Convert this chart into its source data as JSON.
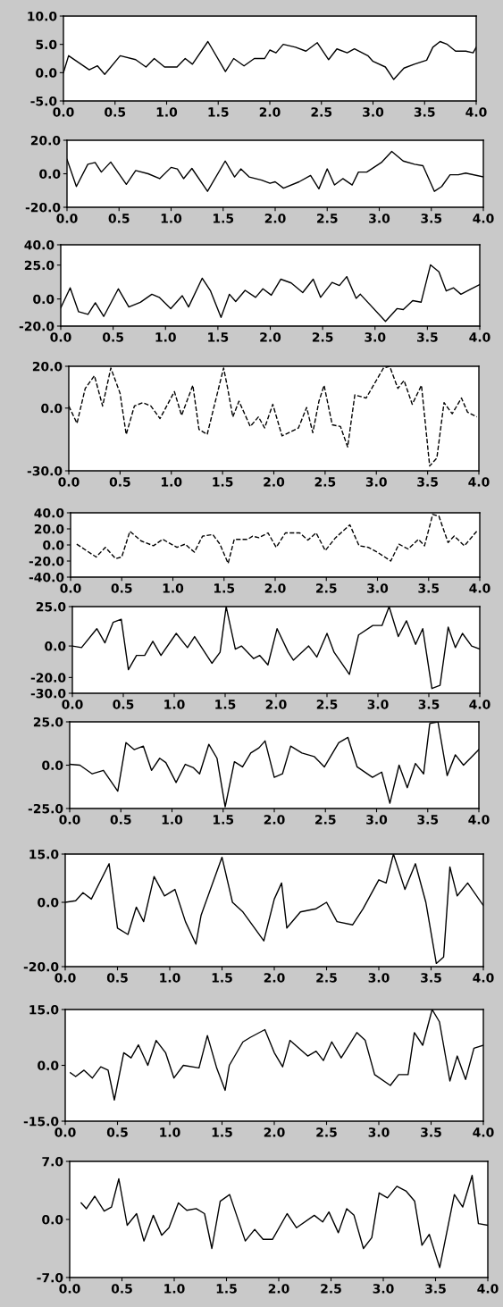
{
  "chart_data": [
    {
      "type": "line",
      "color": "#000000",
      "line_style": "solid",
      "xlim": [
        0,
        4
      ],
      "xticks": [
        {
          "value": 0,
          "label": "0.0"
        },
        {
          "value": 0.5,
          "label": "0.5"
        },
        {
          "value": 1,
          "label": "1.0"
        },
        {
          "value": 1.5,
          "label": "1.5"
        },
        {
          "value": 2,
          "label": "2.0"
        },
        {
          "value": 2.5,
          "label": "2.5"
        },
        {
          "value": 3,
          "label": "3.0"
        },
        {
          "value": 3.5,
          "label": "3.5"
        },
        {
          "value": 4,
          "label": "4.0"
        }
      ],
      "ylim": [
        -5,
        10
      ],
      "yticks": [
        {
          "value": -5,
          "label": "-5.0"
        },
        {
          "value": 0,
          "label": "0.0"
        },
        {
          "value": 5,
          "label": "5.0"
        },
        {
          "value": 10,
          "label": "10.0"
        }
      ],
      "x": [
        0,
        0.05,
        0.25,
        0.33,
        0.4,
        0.55,
        0.7,
        0.8,
        0.88,
        0.98,
        1.1,
        1.18,
        1.25,
        1.4,
        1.57,
        1.65,
        1.75,
        1.85,
        1.95,
        2.0,
        2.06,
        2.13,
        2.25,
        2.35,
        2.46,
        2.57,
        2.65,
        2.75,
        2.82,
        2.95,
        3.0,
        3.12,
        3.2,
        3.3,
        3.4,
        3.52,
        3.58,
        3.65,
        3.72,
        3.8,
        3.9,
        3.97,
        4.0
      ],
      "values": [
        0,
        3,
        0.5,
        1.2,
        -0.3,
        3,
        2.3,
        1,
        2.5,
        1,
        1,
        2.5,
        1.5,
        5.5,
        0.2,
        2.5,
        1.2,
        2.5,
        2.5,
        4,
        3.5,
        5,
        4.5,
        3.8,
        5.3,
        2.3,
        4.2,
        3.5,
        4.2,
        3,
        2,
        1,
        -1.2,
        0.8,
        1.5,
        2.2,
        4.5,
        5.5,
        5,
        3.8,
        3.8,
        3.5,
        4.5
      ]
    },
    {
      "type": "line",
      "color": "#000000",
      "line_style": "solid",
      "xlim": [
        0,
        4
      ],
      "xticks": [
        {
          "value": 0,
          "label": "0.0"
        },
        {
          "value": 0.5,
          "label": "0.5"
        },
        {
          "value": 1,
          "label": "1.0"
        },
        {
          "value": 1.5,
          "label": "1.5"
        },
        {
          "value": 2,
          "label": "2.0"
        },
        {
          "value": 2.5,
          "label": "2.5"
        },
        {
          "value": 3,
          "label": "3.0"
        },
        {
          "value": 3.5,
          "label": "3.5"
        },
        {
          "value": 4,
          "label": "4.0"
        }
      ],
      "ylim": [
        -20,
        20
      ],
      "yticks": [
        {
          "value": -20,
          "label": "-20.0"
        },
        {
          "value": 0,
          "label": "0.0"
        },
        {
          "value": 20,
          "label": "20.0"
        }
      ],
      "x": [
        0,
        0.09,
        0.2,
        0.27,
        0.33,
        0.42,
        0.57,
        0.66,
        0.78,
        0.89,
        1.0,
        1.06,
        1.12,
        1.2,
        1.35,
        1.52,
        1.61,
        1.67,
        1.75,
        1.87,
        1.95,
        2.0,
        2.08,
        2.23,
        2.34,
        2.42,
        2.5,
        2.57,
        2.65,
        2.74,
        2.8,
        2.88,
        3.02,
        3.12,
        3.23,
        3.34,
        3.42,
        3.53,
        3.6,
        3.68,
        3.76,
        3.83,
        4.0
      ],
      "values": [
        8.6,
        -7.6,
        5.7,
        6.7,
        1,
        7,
        -6.3,
        1.9,
        0,
        -2.9,
        3.8,
        2.9,
        -2.9,
        3.2,
        -10.5,
        7.6,
        -1.9,
        2.9,
        -1.9,
        -3.8,
        -5.7,
        -4.8,
        -8.6,
        -4.8,
        -1,
        -9,
        2.9,
        -6.7,
        -2.9,
        -6.7,
        1,
        1,
        6.7,
        13.3,
        7.6,
        5.7,
        4.8,
        -10.5,
        -7.6,
        -0.6,
        -0.6,
        0.4,
        -1.9
      ]
    },
    {
      "type": "line",
      "color": "#000000",
      "line_style": "solid",
      "xlim": [
        0,
        4
      ],
      "xticks": [
        {
          "value": 0,
          "label": "0.0"
        },
        {
          "value": 0.5,
          "label": "0.5"
        },
        {
          "value": 1,
          "label": "1.0"
        },
        {
          "value": 1.5,
          "label": "1.5"
        },
        {
          "value": 2,
          "label": "2.0"
        },
        {
          "value": 2.5,
          "label": "2.5"
        },
        {
          "value": 3,
          "label": "3.0"
        },
        {
          "value": 3.5,
          "label": "3.5"
        },
        {
          "value": 4,
          "label": "4.0"
        }
      ],
      "ylim": [
        -20,
        40
      ],
      "yticks": [
        {
          "value": -20,
          "label": "-20.0"
        },
        {
          "value": 0,
          "label": "0.0"
        },
        {
          "value": 25,
          "label": "25.0"
        },
        {
          "value": 40,
          "label": "40.0"
        }
      ],
      "x": [
        0,
        0.09,
        0.17,
        0.26,
        0.33,
        0.41,
        0.55,
        0.65,
        0.76,
        0.87,
        0.94,
        1.05,
        1.16,
        1.22,
        1.35,
        1.43,
        1.53,
        1.61,
        1.67,
        1.76,
        1.86,
        1.93,
        2.01,
        2.1,
        2.2,
        2.31,
        2.41,
        2.48,
        2.59,
        2.66,
        2.73,
        2.82,
        2.86,
        3.1,
        3.21,
        3.27,
        3.36,
        3.44,
        3.53,
        3.61,
        3.68,
        3.75,
        3.82,
        3.91,
        4.0
      ],
      "values": [
        -6.6,
        8.2,
        -9.4,
        -11.3,
        -2.8,
        -12.9,
        7.5,
        -5.9,
        -2.4,
        3.5,
        1.2,
        -7.1,
        2.4,
        -5.9,
        15.3,
        5.9,
        -13.6,
        3.5,
        -1.9,
        6.4,
        1.2,
        7.5,
        2.8,
        14.6,
        11.8,
        4.7,
        14.6,
        1.2,
        12.2,
        9.9,
        16.5,
        0.5,
        3.5,
        -16.5,
        -7.1,
        -7.8,
        -1.2,
        -2.4,
        25.2,
        20,
        5.9,
        8.2,
        3.5,
        7.1,
        10.6
      ]
    },
    {
      "type": "line",
      "color": "#000000",
      "line_style": "dashed",
      "xlim": [
        0,
        4
      ],
      "xticks": [
        {
          "value": 0,
          "label": "0.0"
        },
        {
          "value": 0.5,
          "label": "0.5"
        },
        {
          "value": 1,
          "label": "1.0"
        },
        {
          "value": 1.5,
          "label": "1.5"
        },
        {
          "value": 2,
          "label": "2.0"
        },
        {
          "value": 2.5,
          "label": "2.5"
        },
        {
          "value": 3,
          "label": "3.0"
        },
        {
          "value": 3.5,
          "label": "3.5"
        },
        {
          "value": 4,
          "label": "4.0"
        }
      ],
      "ylim": [
        -30,
        20
      ],
      "yticks": [
        {
          "value": -30,
          "label": "-30.0"
        },
        {
          "value": 0,
          "label": "0.0"
        },
        {
          "value": 20,
          "label": "20.0"
        }
      ],
      "x": [
        0,
        0.08,
        0.16,
        0.25,
        0.33,
        0.41,
        0.5,
        0.56,
        0.64,
        0.72,
        0.8,
        0.89,
        1.03,
        1.1,
        1.21,
        1.27,
        1.35,
        1.51,
        1.55,
        1.6,
        1.66,
        1.77,
        1.85,
        1.91,
        1.99,
        2.08,
        2.24,
        2.32,
        2.38,
        2.44,
        2.49,
        2.57,
        2.65,
        2.72,
        2.79,
        2.9,
        3.07,
        3.13,
        3.21,
        3.27,
        3.35,
        3.44,
        3.52,
        3.59,
        3.66,
        3.74,
        3.83,
        3.89,
        3.98
      ],
      "values": [
        1,
        -7.3,
        9.4,
        15.5,
        1,
        19.2,
        7.1,
        -12.6,
        1,
        2.6,
        1,
        -5,
        7.9,
        -3.5,
        10.9,
        -10.2,
        -12.6,
        19.2,
        9.4,
        -4.2,
        3.3,
        -8.8,
        -4.2,
        -9.5,
        1.8,
        -13.3,
        -9.5,
        0.3,
        -11.8,
        3.3,
        10.9,
        -8,
        -8.8,
        -18.6,
        6.3,
        4.8,
        19.2,
        20,
        9.4,
        13.2,
        1.8,
        10.9,
        -27.7,
        -23.9,
        2.6,
        -2.7,
        4.8,
        -2,
        -4.2
      ]
    },
    {
      "type": "line",
      "color": "#000000",
      "line_style": "dashed",
      "xlim": [
        0,
        4
      ],
      "xticks": [
        {
          "value": 0,
          "label": "0.0"
        },
        {
          "value": 0.5,
          "label": "0.5"
        },
        {
          "value": 1,
          "label": "1.0"
        },
        {
          "value": 1.5,
          "label": "1.5"
        },
        {
          "value": 2,
          "label": "2.0"
        },
        {
          "value": 2.5,
          "label": "2.5"
        },
        {
          "value": 3,
          "label": "3.0"
        },
        {
          "value": 3.5,
          "label": "3.5"
        },
        {
          "value": 4,
          "label": "4.0"
        }
      ],
      "ylim": [
        -40,
        40
      ],
      "yticks": [
        {
          "value": -40,
          "label": "-40.0"
        },
        {
          "value": -20,
          "label": "-20.0"
        },
        {
          "value": 0,
          "label": "0.0"
        },
        {
          "value": 20,
          "label": "20.0"
        },
        {
          "value": 40,
          "label": "40.0"
        }
      ],
      "x": [
        0.06,
        0.25,
        0.34,
        0.44,
        0.5,
        0.58,
        0.69,
        0.81,
        0.9,
        1.04,
        1.12,
        1.21,
        1.29,
        1.39,
        1.46,
        1.54,
        1.6,
        1.73,
        1.78,
        1.84,
        1.93,
        2.01,
        2.1,
        2.24,
        2.32,
        2.4,
        2.49,
        2.59,
        2.73,
        2.82,
        2.91,
        3.0,
        3.13,
        3.21,
        3.3,
        3.4,
        3.46,
        3.54,
        3.6,
        3.69,
        3.75,
        3.85,
        3.97
      ],
      "values": [
        1,
        -15,
        -3,
        -17,
        -15,
        17,
        5,
        -1,
        7,
        -3,
        1,
        -9,
        11,
        13,
        1,
        -23,
        7,
        7,
        11,
        9,
        15,
        -3,
        15,
        15,
        6,
        15,
        -7,
        9,
        25,
        -1,
        -3,
        -9,
        -20,
        1,
        -5,
        7,
        -1,
        38,
        36,
        3,
        11,
        -1,
        17
      ]
    },
    {
      "type": "line",
      "color": "#000000",
      "line_style": "solid",
      "xlim": [
        0,
        4
      ],
      "xticks": [
        {
          "value": 0,
          "label": "0.0"
        },
        {
          "value": 0.5,
          "label": "0.5"
        },
        {
          "value": 1,
          "label": "1.0"
        },
        {
          "value": 1.5,
          "label": "1.5"
        },
        {
          "value": 2,
          "label": "2.0"
        },
        {
          "value": 2.5,
          "label": "2.5"
        },
        {
          "value": 3,
          "label": "3.0"
        },
        {
          "value": 3.5,
          "label": "3.5"
        },
        {
          "value": 4,
          "label": "4.0"
        }
      ],
      "ylim": [
        -30,
        25
      ],
      "yticks": [
        {
          "value": -30,
          "label": "-30.0"
        },
        {
          "value": -20,
          "label": "-20.0"
        },
        {
          "value": 0,
          "label": "0.0"
        },
        {
          "value": 25,
          "label": "25.0"
        }
      ],
      "x": [
        0,
        0.09,
        0.24,
        0.32,
        0.4,
        0.48,
        0.55,
        0.63,
        0.71,
        0.79,
        0.87,
        1.02,
        1.13,
        1.2,
        1.37,
        1.45,
        1.51,
        1.6,
        1.66,
        1.78,
        1.84,
        1.92,
        2.01,
        2.12,
        2.17,
        2.32,
        2.4,
        2.5,
        2.57,
        2.72,
        2.81,
        2.95,
        3.04,
        3.11,
        3.2,
        3.28,
        3.37,
        3.44,
        3.53,
        3.61,
        3.69,
        3.76,
        3.83,
        3.92,
        4.0
      ],
      "values": [
        0,
        -1,
        11,
        2,
        15,
        17,
        -15,
        -6,
        -6,
        3,
        -6,
        8,
        -1,
        6,
        -11,
        -4,
        25,
        -2,
        0,
        -8,
        -6,
        -12,
        11,
        -4,
        -9,
        0,
        -7,
        8,
        -4,
        -18,
        7,
        13,
        13,
        25,
        6,
        16,
        1,
        11,
        -27,
        -25,
        12,
        -1,
        8,
        0,
        -2
      ]
    },
    {
      "type": "line",
      "color": "#000000",
      "line_style": "solid",
      "xlim": [
        0,
        4
      ],
      "xticks": [
        {
          "value": 0,
          "label": "0.0"
        },
        {
          "value": 0.5,
          "label": "0.5"
        },
        {
          "value": 1,
          "label": "1.0"
        },
        {
          "value": 1.5,
          "label": "1.5"
        },
        {
          "value": 2,
          "label": "2.0"
        },
        {
          "value": 2.5,
          "label": "2.5"
        },
        {
          "value": 3,
          "label": "3.0"
        },
        {
          "value": 3.5,
          "label": "3.5"
        },
        {
          "value": 4,
          "label": "4.0"
        }
      ],
      "ylim": [
        -25,
        25
      ],
      "yticks": [
        {
          "value": -25,
          "label": "-25.0"
        },
        {
          "value": 0,
          "label": "0.0"
        },
        {
          "value": 25,
          "label": "25.0"
        }
      ],
      "x": [
        0,
        0.1,
        0.22,
        0.33,
        0.47,
        0.55,
        0.63,
        0.72,
        0.8,
        0.88,
        0.94,
        1.04,
        1.13,
        1.21,
        1.27,
        1.36,
        1.44,
        1.52,
        1.61,
        1.69,
        1.77,
        1.85,
        1.91,
        2.0,
        2.08,
        2.16,
        2.27,
        2.39,
        2.49,
        2.63,
        2.72,
        2.81,
        2.96,
        3.05,
        3.13,
        3.22,
        3.3,
        3.38,
        3.46,
        3.52,
        3.6,
        3.69,
        3.77,
        3.85,
        4.0
      ],
      "values": [
        0.5,
        0,
        -5,
        -3,
        -15,
        13,
        9,
        11,
        -3,
        4,
        1.5,
        -10,
        0.5,
        -1.5,
        -5,
        12,
        4,
        -24,
        2,
        -1,
        7,
        10,
        14,
        -7,
        -5,
        11,
        7,
        5,
        -1,
        13,
        16,
        -1,
        -7,
        -4,
        -22,
        0,
        -13,
        1,
        -5,
        24,
        25,
        -6,
        6,
        0,
        9
      ]
    },
    {
      "type": "line",
      "color": "#000000",
      "line_style": "solid",
      "xlim": [
        0,
        4
      ],
      "xticks": [
        {
          "value": 0,
          "label": "0.0"
        },
        {
          "value": 0.5,
          "label": "0.5"
        },
        {
          "value": 1,
          "label": "1.0"
        },
        {
          "value": 1.5,
          "label": "1.5"
        },
        {
          "value": 2,
          "label": "2.0"
        },
        {
          "value": 2.5,
          "label": "2.5"
        },
        {
          "value": 3,
          "label": "3.0"
        },
        {
          "value": 3.5,
          "label": "3.5"
        },
        {
          "value": 4,
          "label": "4.0"
        }
      ],
      "ylim": [
        -20,
        15
      ],
      "yticks": [
        {
          "value": -20,
          "label": "-20.0"
        },
        {
          "value": 0,
          "label": "0.0"
        },
        {
          "value": 15,
          "label": "15.0"
        }
      ],
      "x": [
        0,
        0.1,
        0.17,
        0.25,
        0.42,
        0.5,
        0.6,
        0.68,
        0.75,
        0.85,
        0.95,
        1.05,
        1.15,
        1.25,
        1.3,
        1.5,
        1.6,
        1.7,
        1.9,
        2.0,
        2.07,
        2.12,
        2.25,
        2.4,
        2.5,
        2.6,
        2.75,
        2.85,
        3.0,
        3.07,
        3.14,
        3.25,
        3.35,
        3.45,
        3.55,
        3.62,
        3.68,
        3.75,
        3.85,
        4.0
      ],
      "values": [
        0,
        0.5,
        3,
        1,
        12,
        -8,
        -10,
        -1.5,
        -6,
        8,
        2,
        4,
        -6,
        -13,
        -4,
        14,
        0,
        -3,
        -12,
        1,
        6,
        -8,
        -3,
        -2,
        0,
        -6,
        -7,
        -2,
        7,
        6,
        15,
        4,
        12,
        0,
        -19,
        -17,
        11,
        2,
        6,
        -1
      ]
    },
    {
      "type": "line",
      "color": "#000000",
      "line_style": "solid",
      "xlim": [
        0,
        4
      ],
      "xticks": [
        {
          "value": 0,
          "label": "0.0"
        },
        {
          "value": 0.5,
          "label": "0.5"
        },
        {
          "value": 1,
          "label": "1.0"
        },
        {
          "value": 1.5,
          "label": "1.5"
        },
        {
          "value": 2,
          "label": "2.0"
        },
        {
          "value": 2.5,
          "label": "2.5"
        },
        {
          "value": 3,
          "label": "3.0"
        },
        {
          "value": 3.5,
          "label": "3.5"
        },
        {
          "value": 4,
          "label": "4.0"
        }
      ],
      "ylim": [
        -15,
        15
      ],
      "yticks": [
        {
          "value": -15,
          "label": "-15.0"
        },
        {
          "value": 0,
          "label": "0.0"
        },
        {
          "value": 15,
          "label": "15.0"
        }
      ],
      "x": [
        0.05,
        0.1,
        0.18,
        0.26,
        0.34,
        0.41,
        0.47,
        0.56,
        0.63,
        0.7,
        0.79,
        0.87,
        0.96,
        1.04,
        1.13,
        1.28,
        1.36,
        1.45,
        1.53,
        1.57,
        1.7,
        1.77,
        1.91,
        2.0,
        2.08,
        2.15,
        2.32,
        2.4,
        2.47,
        2.55,
        2.64,
        2.79,
        2.87,
        2.96,
        3.11,
        3.19,
        3.28,
        3.34,
        3.42,
        3.51,
        3.58,
        3.68,
        3.75,
        3.83,
        3.91,
        4.0
      ],
      "values": [
        -2,
        -3,
        -1.3,
        -3.4,
        -0.4,
        -1.3,
        -9.3,
        3.4,
        2,
        5.5,
        0,
        6.7,
        3.4,
        -3.4,
        0,
        -0.7,
        8,
        -0.8,
        -6.7,
        0,
        6.3,
        7.5,
        9.6,
        3.4,
        -0.4,
        6.7,
        2.5,
        3.8,
        1.3,
        6.3,
        2,
        8.8,
        6.7,
        -2.5,
        -5.4,
        -2.5,
        -2.5,
        8.8,
        5.4,
        15,
        11.7,
        -4.2,
        2.5,
        -3.8,
        4.6,
        5.4
      ]
    },
    {
      "type": "line",
      "color": "#000000",
      "line_style": "solid",
      "xlim": [
        0,
        4
      ],
      "xticks": [
        {
          "value": 0,
          "label": "0.0"
        },
        {
          "value": 0.5,
          "label": "0.5"
        },
        {
          "value": 1,
          "label": "1.0"
        },
        {
          "value": 1.5,
          "label": "1.5"
        },
        {
          "value": 2,
          "label": "2.0"
        },
        {
          "value": 2.5,
          "label": "2.5"
        },
        {
          "value": 3,
          "label": "3.0"
        },
        {
          "value": 3.5,
          "label": "3.5"
        },
        {
          "value": 4,
          "label": "4.0"
        }
      ],
      "ylim": [
        -7,
        7
      ],
      "yticks": [
        {
          "value": -7,
          "label": "-7.0"
        },
        {
          "value": 0,
          "label": "0.0"
        },
        {
          "value": 7,
          "label": "7.0"
        }
      ],
      "x": [
        0.11,
        0.16,
        0.24,
        0.33,
        0.4,
        0.47,
        0.55,
        0.64,
        0.71,
        0.8,
        0.88,
        0.95,
        1.04,
        1.12,
        1.21,
        1.29,
        1.36,
        1.44,
        1.53,
        1.68,
        1.77,
        1.85,
        1.94,
        2.08,
        2.17,
        2.34,
        2.42,
        2.48,
        2.57,
        2.65,
        2.72,
        2.81,
        2.89,
        2.96,
        3.04,
        3.13,
        3.22,
        3.3,
        3.37,
        3.44,
        3.54,
        3.68,
        3.76,
        3.85,
        3.91,
        4.0
      ],
      "values": [
        2,
        1.3,
        2.8,
        1,
        1.5,
        4.9,
        -0.7,
        0.7,
        -2.6,
        0.5,
        -1.9,
        -1,
        2,
        1.1,
        1.3,
        0.7,
        -3.5,
        2.2,
        3,
        -2.6,
        -1.2,
        -2.4,
        -2.4,
        0.7,
        -1,
        0.5,
        -0.3,
        0.9,
        -1.6,
        1.3,
        0.5,
        -3.5,
        -2.2,
        3.2,
        2.6,
        4,
        3.4,
        2.2,
        -3.1,
        -1.8,
        -5.8,
        3,
        1.5,
        5.3,
        -0.5,
        -0.7
      ]
    }
  ]
}
